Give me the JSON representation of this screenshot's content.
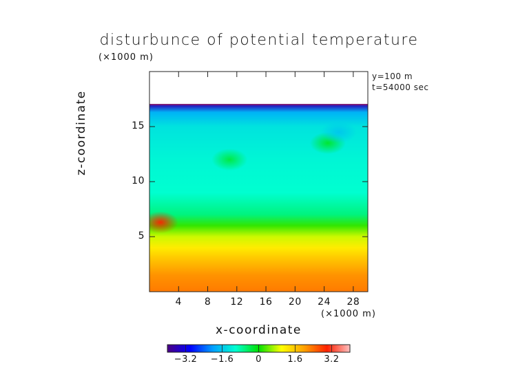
{
  "chart_data": {
    "type": "heatmap",
    "title": "disturbunce of potential temperature",
    "xlabel": "x-coordinate",
    "ylabel": "z-coordinate",
    "x_unit": "(×1000 m)",
    "y_unit": "(×1000 m)",
    "annotations": [
      "y=100 m",
      "t=54000 sec"
    ],
    "xlim": [
      0,
      30
    ],
    "ylim": [
      0,
      20
    ],
    "x_ticks": [
      4,
      8,
      12,
      16,
      20,
      24,
      28
    ],
    "y_ticks": [
      5,
      10,
      15
    ],
    "colorbar": {
      "min": -4,
      "max": 4,
      "ticks": [
        -3.2,
        -1.6,
        0,
        1.6,
        3.2
      ],
      "tick_labels": [
        "−3.2",
        "−1.6",
        "0",
        "1.6",
        "3.2"
      ],
      "colormap": [
        "#4b0082",
        "#0000ff",
        "#00a0ff",
        "#00ffd0",
        "#00e000",
        "#ffff00",
        "#ffa000",
        "#ff2000",
        "#ffc0c0"
      ]
    },
    "field_top_z": 17,
    "vertical_profile": [
      {
        "z": 0.0,
        "value": 2.3
      },
      {
        "z": 1.5,
        "value": 2.1
      },
      {
        "z": 3.0,
        "value": 1.6
      },
      {
        "z": 4.0,
        "value": 1.2
      },
      {
        "z": 5.0,
        "value": 0.8
      },
      {
        "z": 6.0,
        "value": 0.2
      },
      {
        "z": 7.0,
        "value": -0.6
      },
      {
        "z": 9.0,
        "value": -1.0
      },
      {
        "z": 12.0,
        "value": -1.1
      },
      {
        "z": 15.0,
        "value": -1.3
      },
      {
        "z": 16.3,
        "value": -1.8
      },
      {
        "z": 17.0,
        "value": -3.6
      }
    ],
    "features": [
      {
        "x": 1.5,
        "z": 6.3,
        "value": 3.0
      },
      {
        "x": 11.0,
        "z": 12.0,
        "value": -0.3
      },
      {
        "x": 24.5,
        "z": 13.5,
        "value": -0.2
      },
      {
        "x": 26.0,
        "z": 14.5,
        "value": -1.6
      }
    ]
  }
}
